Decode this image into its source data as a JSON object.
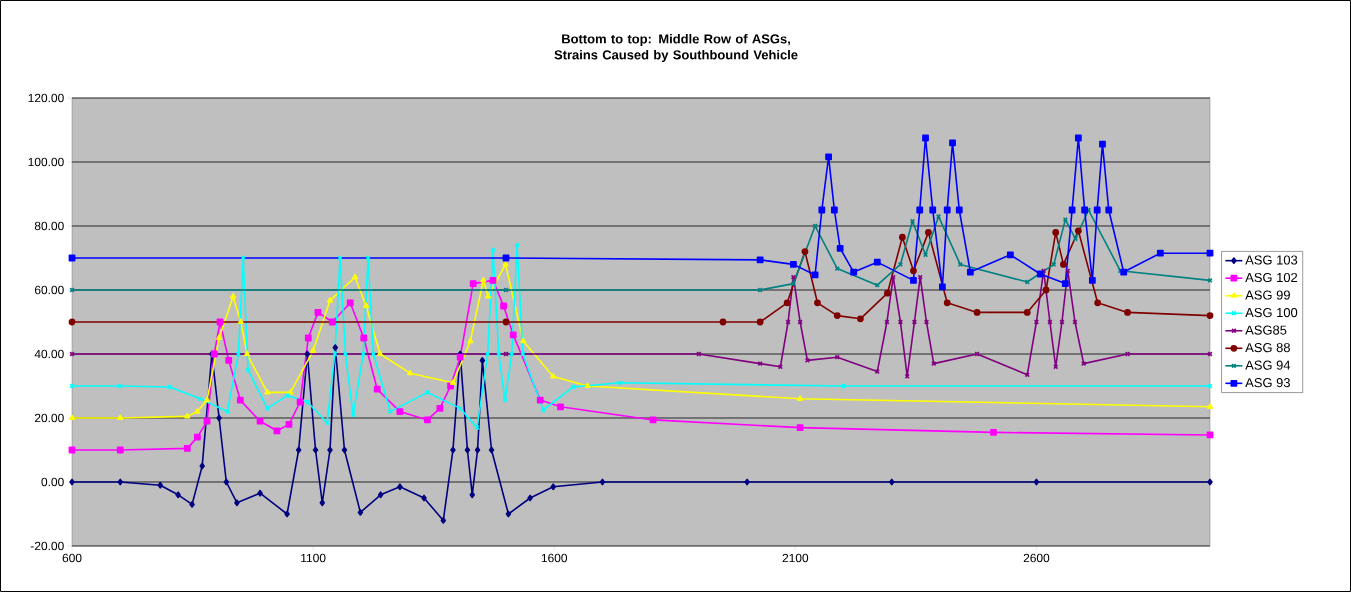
{
  "chart_data": {
    "type": "line",
    "title": "Bottom to top: Middle Row of ASGs, Strains Caused by Southbound Vehicle",
    "xlim": [
      600,
      2960
    ],
    "xticks": [
      600,
      1100,
      1600,
      2100,
      2600
    ],
    "ylim": [
      -20,
      120
    ],
    "yticks": [
      {
        "value": -20,
        "label": "-20.00"
      },
      {
        "value": 0,
        "label": "0.00"
      },
      {
        "value": 20,
        "label": "20.00"
      },
      {
        "value": 40,
        "label": "40.00"
      },
      {
        "value": 60,
        "label": "60.00"
      },
      {
        "value": 80,
        "label": "80.00"
      },
      {
        "value": 100,
        "label": "100.00"
      },
      {
        "value": 120,
        "label": "120.00"
      }
    ],
    "grid": "y",
    "legend": "right",
    "series": [
      {
        "name": "ASG 103",
        "color": "#000080",
        "marker": "diamond",
        "x": [
          600,
          700,
          783,
          820,
          849,
          870,
          890,
          905,
          920,
          942,
          990,
          1046,
          1070,
          1088,
          1105,
          1119,
          1135,
          1146,
          1165,
          1198,
          1240,
          1280,
          1330,
          1370,
          1390,
          1405,
          1420,
          1430,
          1441,
          1451,
          1470,
          1505,
          1550,
          1598,
          1700,
          2000,
          2300,
          2600,
          2960
        ],
        "values": [
          0,
          0,
          -1,
          -4,
          -7,
          5,
          40,
          20,
          0,
          -6.5,
          -3.5,
          -10,
          10,
          40,
          10,
          -6.5,
          10,
          42,
          10,
          -9.5,
          -4,
          -1.5,
          -5,
          -12,
          10,
          40,
          10,
          -4,
          10,
          38,
          10,
          -10,
          -5,
          -1.5,
          0,
          0,
          0,
          0,
          0
        ]
      },
      {
        "name": "ASG 102",
        "color": "#ff00ff",
        "marker": "square",
        "x": [
          600,
          700,
          839,
          860,
          880,
          895,
          907,
          925,
          949,
          990,
          1025,
          1050,
          1073,
          1090,
          1110,
          1140,
          1177,
          1205,
          1233,
          1280,
          1337,
          1363,
          1385,
          1405,
          1432,
          1473,
          1495,
          1515,
          1571,
          1613,
          1805,
          2110,
          2511,
          2960
        ],
        "values": [
          10,
          10,
          10.5,
          14,
          19,
          40,
          50,
          38,
          25.6,
          19,
          16,
          18,
          25,
          45,
          53,
          50,
          56,
          45,
          29,
          22,
          19.4,
          23,
          30,
          39,
          62,
          63,
          55,
          46,
          25.6,
          23.5,
          19.4,
          17,
          15.5,
          14.7
        ]
      },
      {
        "name": "ASG 99",
        "color": "#ffff00",
        "marker": "triangle",
        "x": [
          600,
          700,
          839,
          860,
          880,
          905,
          934,
          950,
          963,
          1005,
          1053,
          1100,
          1135,
          1187,
          1210,
          1239,
          1301,
          1390,
          1426,
          1453,
          1463,
          1499,
          1536,
          1598,
          1669,
          2110,
          2960
        ],
        "values": [
          20,
          20,
          20.5,
          22,
          25.6,
          45,
          58,
          50,
          40,
          28,
          28,
          41,
          56.7,
          64,
          55,
          40,
          34,
          31,
          44,
          63,
          58,
          68,
          44,
          33,
          30,
          26,
          23.5
        ]
      },
      {
        "name": "ASG 100",
        "color": "#00ffff",
        "marker": "cross",
        "x": [
          600,
          700,
          803,
          866,
          922,
          945,
          955,
          965,
          1005,
          1046,
          1088,
          1129,
          1145,
          1156,
          1167,
          1183,
          1204,
          1214,
          1225,
          1260,
          1337,
          1405,
          1440,
          1462,
          1473,
          1485,
          1498,
          1512,
          1523,
          1535,
          1577,
          1639,
          1737,
          2200,
          2960
        ],
        "values": [
          30,
          30,
          29.7,
          26,
          22,
          40,
          70,
          35,
          23,
          27,
          25,
          18.5,
          40,
          70,
          40,
          21,
          40,
          70,
          40,
          22,
          28,
          23,
          17,
          40,
          72.5,
          40,
          25.6,
          40,
          74,
          40,
          22.5,
          29.7,
          31,
          30,
          30
        ]
      },
      {
        "name": "ASG85",
        "color": "#800080",
        "marker": "cross",
        "x": [
          600,
          1500,
          1900,
          2027,
          2069,
          2085,
          2096,
          2110,
          2125,
          2187,
          2270,
          2290,
          2303,
          2318,
          2332,
          2347,
          2359,
          2372,
          2387,
          2477,
          2581,
          2600,
          2615,
          2628,
          2640,
          2653,
          2665,
          2680,
          2698,
          2789,
          2960
        ],
        "values": [
          40,
          40,
          40,
          37,
          36,
          50,
          64,
          50,
          38,
          39,
          34.5,
          50,
          64,
          50,
          33,
          50,
          64,
          50,
          37,
          40,
          33.5,
          50,
          66,
          50,
          36,
          50,
          66,
          50,
          37,
          40,
          40
        ]
      },
      {
        "name": "ASG 88",
        "color": "#800000",
        "marker": "circle",
        "x": [
          600,
          1500,
          1950,
          2027,
          2083,
          2120,
          2146,
          2187,
          2235,
          2291,
          2322,
          2345,
          2376,
          2415,
          2477,
          2581,
          2620,
          2640,
          2656,
          2687,
          2727,
          2789,
          2960
        ],
        "values": [
          50,
          50,
          50,
          50,
          56,
          72,
          56,
          52,
          51,
          59,
          76.5,
          66,
          78,
          56,
          53,
          53,
          60,
          78,
          68,
          78.5,
          56,
          53,
          52
        ]
      },
      {
        "name": "ASG 94",
        "color": "#008080",
        "marker": "cross",
        "x": [
          600,
          1500,
          2027,
          2096,
          2141,
          2187,
          2270,
          2318,
          2343,
          2370,
          2397,
          2442,
          2581,
          2636,
          2660,
          2681,
          2708,
          2774,
          2960
        ],
        "values": [
          60,
          60,
          60,
          62,
          80,
          66.7,
          61.5,
          68,
          81.5,
          71,
          83,
          68,
          62.5,
          68,
          82,
          76,
          85,
          66,
          63
        ]
      },
      {
        "name": "ASG 93",
        "color": "#0000ff",
        "marker": "square",
        "x": [
          600,
          1500,
          2027,
          2096,
          2141,
          2155,
          2169,
          2181,
          2193,
          2221,
          2270,
          2345,
          2358,
          2370,
          2385,
          2405,
          2415,
          2426,
          2440,
          2463,
          2546,
          2608,
          2660,
          2674,
          2687,
          2700,
          2716,
          2726,
          2737,
          2750,
          2781,
          2857,
          2960
        ],
        "values": [
          70,
          70,
          69.4,
          68,
          64.7,
          85,
          101.6,
          85,
          73,
          65.6,
          68.7,
          63,
          85,
          107.5,
          85,
          61,
          85,
          106,
          85,
          65.6,
          71,
          65,
          62,
          85,
          107.5,
          85,
          63,
          85,
          105.6,
          85,
          65.6,
          71.5,
          71.5
        ]
      }
    ]
  }
}
